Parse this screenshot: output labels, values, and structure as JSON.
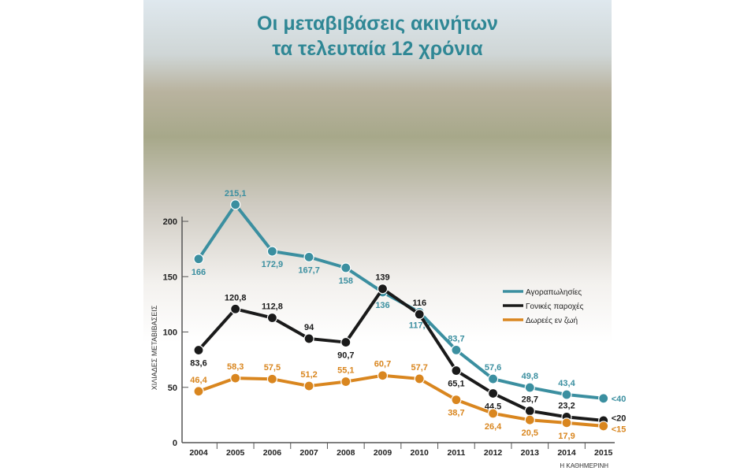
{
  "credit": "Η ΚΑΘΗΜΕΡΙΝΗ",
  "colors": {
    "teal": "#3b8fa0",
    "black": "#1a1a1a",
    "orange": "#d9861f",
    "title": "#2f8795"
  },
  "chart_data": {
    "type": "line",
    "title": [
      "Οι μεταβιβάσεις ακινήτων",
      "τα τελευταία 12 χρόνια"
    ],
    "ylabel": "ΧΙΛΙΑΔΕΣ ΜΕΤΑΒΙΒΑΣΕΙΣ",
    "xlabel": "",
    "ylim": [
      0,
      200
    ],
    "yticks": [
      0,
      50,
      100,
      150,
      200
    ],
    "grid": false,
    "legend_position": "right",
    "categories": [
      "2004",
      "2005",
      "2006",
      "2007",
      "2008",
      "2009",
      "2010",
      "2011",
      "2012",
      "2013",
      "2014",
      "2015"
    ],
    "series": [
      {
        "name": "Αγοραπωλησίες",
        "color": "#3b8fa0",
        "values": [
          166,
          215.1,
          172.9,
          167.7,
          158,
          136,
          117.9,
          83.7,
          57.6,
          49.8,
          43.4,
          40
        ],
        "labels": [
          "166",
          "215,1",
          "172,9",
          "167,7",
          "158",
          "136",
          "117,9",
          "83,7",
          "57,6",
          "49,8",
          "43,4",
          "<40"
        ],
        "label_pos": [
          "below",
          "above",
          "below",
          "below",
          "below",
          "below",
          "below",
          "above",
          "above",
          "above",
          "above",
          "right"
        ]
      },
      {
        "name": "Γονικές παροχές",
        "color": "#1a1a1a",
        "values": [
          83.6,
          120.8,
          112.8,
          94,
          90.7,
          139,
          116,
          65.1,
          44.5,
          28.7,
          23.2,
          20
        ],
        "labels": [
          "83,6",
          "120,8",
          "112,8",
          "94",
          "90,7",
          "139",
          "116",
          "65,1",
          "44,5",
          "28,7",
          "23,2",
          "<20"
        ],
        "label_pos": [
          "below",
          "above",
          "above",
          "above",
          "below",
          "above",
          "above",
          "below",
          "below",
          "above",
          "above",
          "right"
        ]
      },
      {
        "name": "Δωρεές εν ζωή",
        "color": "#d9861f",
        "values": [
          46.4,
          58.3,
          57.5,
          51.2,
          55.1,
          60.7,
          57.7,
          38.7,
          26.4,
          20.5,
          17.9,
          15
        ],
        "labels": [
          "46,4",
          "58,3",
          "57,5",
          "51,2",
          "55,1",
          "60,7",
          "57,7",
          "38,7",
          "26,4",
          "20,5",
          "17,9",
          "<15"
        ],
        "label_pos": [
          "above",
          "above",
          "above",
          "above",
          "above",
          "above",
          "above",
          "below",
          "below",
          "below",
          "below",
          "right"
        ]
      }
    ]
  }
}
